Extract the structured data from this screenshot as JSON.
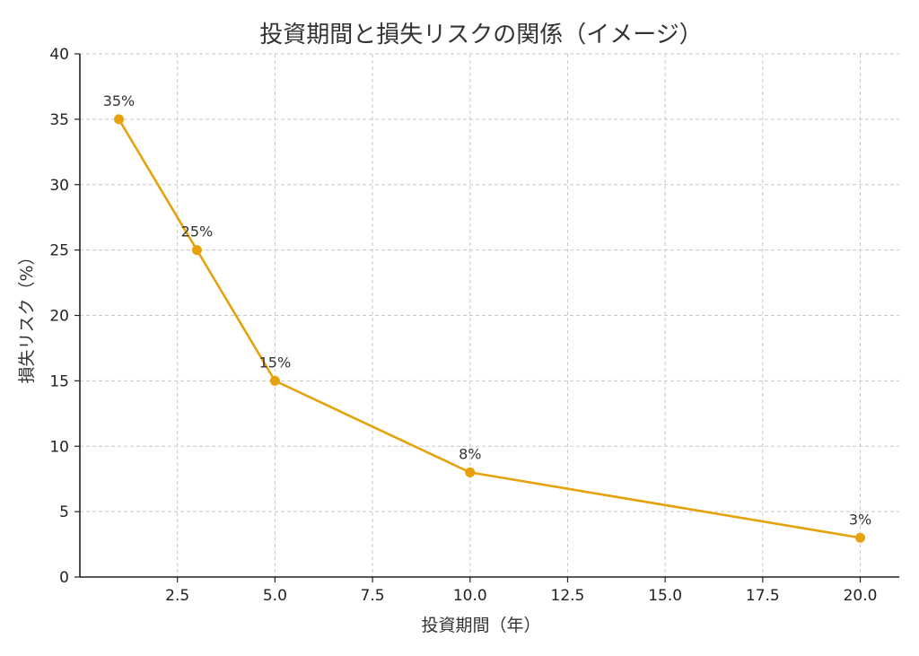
{
  "chart_data": {
    "type": "line",
    "title": "投資期間と損失リスクの関係（イメージ）",
    "xlabel": "投資期間（年）",
    "ylabel": "損失リスク（%）",
    "x": [
      1,
      3,
      5,
      10,
      20
    ],
    "series": [
      {
        "values": [
          35,
          25,
          15,
          8,
          3
        ],
        "labels": [
          "35%",
          "25%",
          "15%",
          "8%",
          "3%"
        ],
        "color": "#E6A10B"
      }
    ],
    "xlim": [
      0.0,
      21.0
    ],
    "ylim": [
      0,
      40
    ],
    "xticks": [
      2.5,
      5.0,
      7.5,
      10.0,
      12.5,
      15.0,
      17.5,
      20.0
    ],
    "xtick_labels": [
      "2.5",
      "5.0",
      "7.5",
      "10.0",
      "12.5",
      "15.0",
      "17.5",
      "20.0"
    ],
    "yticks": [
      0,
      5,
      10,
      15,
      20,
      25,
      30,
      35,
      40
    ],
    "ytick_labels": [
      "0",
      "5",
      "10",
      "15",
      "20",
      "25",
      "30",
      "35",
      "40"
    ],
    "grid": true,
    "marker": "circle"
  }
}
